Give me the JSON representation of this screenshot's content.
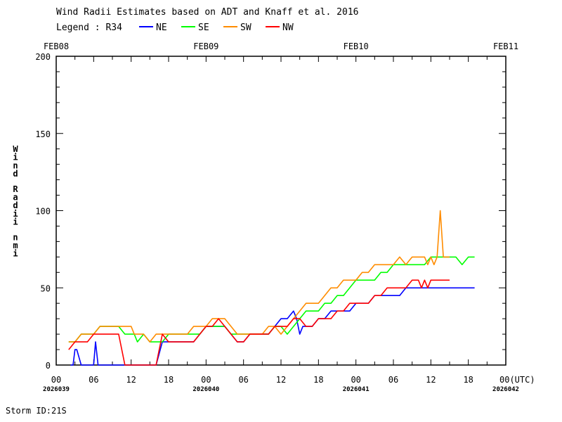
{
  "title": "Wind Radii Estimates based on ADT and Knaff et al. 2016",
  "legend": {
    "prefix": "Legend : R34",
    "entries": [
      {
        "name": "NE",
        "color": "#0000ff"
      },
      {
        "name": "SE",
        "color": "#00ff00"
      },
      {
        "name": "SW",
        "color": "#ff8c00"
      },
      {
        "name": "NW",
        "color": "#ff0000"
      }
    ]
  },
  "storm_id": "Storm ID:21S",
  "utc_label": "00(UTC)",
  "chart_data": {
    "type": "line",
    "ylabel": "W i n d   R a d i i   n m i",
    "ylim": [
      0,
      200
    ],
    "yticks": [
      0,
      50,
      100,
      150,
      200
    ],
    "xlim_hours": [
      0,
      72
    ],
    "xtick_labels": [
      "00",
      "06",
      "12",
      "18",
      "00",
      "06",
      "12",
      "18",
      "00",
      "06",
      "12",
      "18",
      "00(UTC)"
    ],
    "top_dates": [
      "FEB08",
      "FEB09",
      "FEB10",
      "FEB11"
    ],
    "bottom_dates": [
      "2026039",
      "2026040",
      "2026041",
      "2026042"
    ],
    "series": [
      {
        "name": "NE",
        "color": "#0000ff",
        "x": [
          2.3,
          2.7,
          3.0,
          3.3,
          4.0,
          5.0,
          6.0,
          6.3,
          6.7,
          7.0,
          10.0,
          14.0,
          15.0,
          16.0,
          17.0,
          18.0,
          19.0,
          20.0,
          21.0,
          22.0,
          23.0,
          24.0,
          25.0,
          26.0,
          27.0,
          28.0,
          29.0,
          30.0,
          31.0,
          32.0,
          33.0,
          34.0,
          35.0,
          36.0,
          37.0,
          38.0,
          38.5,
          39.0,
          39.5,
          40.0,
          41.0,
          42.0,
          43.0,
          44.0,
          45.0,
          46.0,
          47.0,
          48.0,
          49.0,
          50.0,
          51.0,
          52.0,
          53.0,
          54.0,
          55.0,
          56.0,
          57.0,
          58.0,
          59.0,
          60.0,
          61.0,
          62.0,
          63.0,
          64.0,
          65.0,
          66.0,
          67.0
        ],
        "y": [
          0,
          0,
          10,
          10,
          0,
          0,
          0,
          15,
          0,
          0,
          0,
          0,
          0,
          0,
          15,
          15,
          15,
          15,
          15,
          15,
          20,
          25,
          25,
          25,
          25,
          20,
          15,
          15,
          20,
          20,
          20,
          20,
          25,
          30,
          30,
          35,
          30,
          20,
          25,
          25,
          25,
          30,
          30,
          35,
          35,
          35,
          35,
          40,
          40,
          40,
          45,
          45,
          45,
          45,
          45,
          50,
          50,
          50,
          50,
          50,
          50,
          50,
          50,
          50,
          50,
          50,
          50
        ]
      },
      {
        "name": "SE",
        "color": "#00ff00",
        "x": [
          2.0,
          3.0,
          4.0,
          5.0,
          6.0,
          7.0,
          8.0,
          9.0,
          10.0,
          11.0,
          12.0,
          12.5,
          13.0,
          14.0,
          15.0,
          16.0,
          17.0,
          18.0,
          19.0,
          20.0,
          21.0,
          22.0,
          23.0,
          24.0,
          25.0,
          26.0,
          27.0,
          28.0,
          29.0,
          30.0,
          31.0,
          32.0,
          33.0,
          34.0,
          35.0,
          36.0,
          37.0,
          38.0,
          39.0,
          40.0,
          41.0,
          42.0,
          43.0,
          44.0,
          45.0,
          46.0,
          47.0,
          48.0,
          49.0,
          50.0,
          51.0,
          52.0,
          53.0,
          54.0,
          55.0,
          56.0,
          57.0,
          58.0,
          59.0,
          60.0,
          61.0,
          62.0,
          63.0,
          64.0,
          65.0,
          66.0,
          67.0
        ],
        "y": [
          15,
          15,
          20,
          20,
          20,
          25,
          25,
          25,
          25,
          20,
          20,
          20,
          15,
          20,
          15,
          15,
          15,
          20,
          20,
          20,
          20,
          20,
          20,
          25,
          25,
          25,
          25,
          20,
          20,
          20,
          20,
          20,
          20,
          20,
          25,
          25,
          20,
          25,
          30,
          35,
          35,
          35,
          40,
          40,
          45,
          45,
          50,
          55,
          55,
          55,
          55,
          60,
          60,
          65,
          65,
          65,
          65,
          65,
          65,
          70,
          70,
          70,
          70,
          70,
          65,
          70,
          70
        ]
      },
      {
        "name": "SW",
        "color": "#ff8c00",
        "x": [
          2.0,
          3.0,
          4.0,
          5.0,
          6.0,
          7.0,
          8.0,
          9.0,
          10.0,
          11.0,
          11.5,
          12.0,
          12.5,
          13.0,
          14.0,
          15.0,
          16.0,
          17.0,
          18.0,
          19.0,
          20.0,
          21.0,
          22.0,
          23.0,
          24.0,
          25.0,
          26.0,
          27.0,
          28.0,
          29.0,
          30.0,
          31.0,
          32.0,
          33.0,
          34.0,
          35.0,
          36.0,
          37.0,
          38.0,
          39.0,
          40.0,
          41.0,
          42.0,
          43.0,
          44.0,
          45.0,
          46.0,
          47.0,
          48.0,
          49.0,
          50.0,
          51.0,
          51.5,
          52.0,
          52.5,
          53.0,
          54.0,
          55.0,
          56.0,
          57.0,
          57.5,
          58.0,
          58.5,
          59.0,
          59.5,
          60.0,
          60.5,
          61.0,
          61.5,
          62.0,
          63.0
        ],
        "y": [
          15,
          15,
          20,
          20,
          20,
          25,
          25,
          25,
          25,
          25,
          25,
          25,
          20,
          20,
          20,
          15,
          20,
          20,
          20,
          20,
          20,
          20,
          25,
          25,
          25,
          30,
          30,
          30,
          25,
          20,
          20,
          20,
          20,
          20,
          25,
          25,
          20,
          25,
          30,
          35,
          40,
          40,
          40,
          45,
          50,
          50,
          55,
          55,
          55,
          60,
          60,
          65,
          65,
          65,
          65,
          65,
          65,
          70,
          65,
          70,
          70,
          70,
          70,
          70,
          65,
          70,
          65,
          70,
          100,
          70,
          70
        ]
      },
      {
        "name": "NW",
        "color": "#ff0000",
        "x": [
          2.0,
          3.0,
          4.0,
          5.0,
          6.0,
          7.0,
          8.0,
          9.0,
          10.0,
          11.0,
          12.0,
          13.0,
          14.0,
          15.0,
          16.0,
          17.0,
          18.0,
          19.0,
          20.0,
          21.0,
          22.0,
          23.0,
          24.0,
          25.0,
          26.0,
          27.0,
          28.0,
          29.0,
          30.0,
          31.0,
          32.0,
          33.0,
          34.0,
          35.0,
          36.0,
          37.0,
          38.0,
          39.0,
          40.0,
          41.0,
          42.0,
          43.0,
          44.0,
          45.0,
          46.0,
          47.0,
          48.0,
          49.0,
          50.0,
          51.0,
          52.0,
          53.0,
          54.0,
          55.0,
          56.0,
          57.0,
          58.0,
          58.5,
          59.0,
          59.5,
          60.0,
          60.5,
          61.0,
          62.0,
          63.0
        ],
        "y": [
          10,
          15,
          15,
          15,
          20,
          20,
          20,
          20,
          20,
          0,
          0,
          0,
          0,
          0,
          0,
          20,
          15,
          15,
          15,
          15,
          15,
          20,
          25,
          25,
          30,
          25,
          20,
          15,
          15,
          20,
          20,
          20,
          20,
          25,
          25,
          25,
          30,
          30,
          25,
          25,
          30,
          30,
          30,
          35,
          35,
          40,
          40,
          40,
          40,
          45,
          45,
          50,
          50,
          50,
          50,
          55,
          55,
          50,
          55,
          50,
          55,
          55,
          55,
          55,
          55
        ]
      }
    ]
  }
}
